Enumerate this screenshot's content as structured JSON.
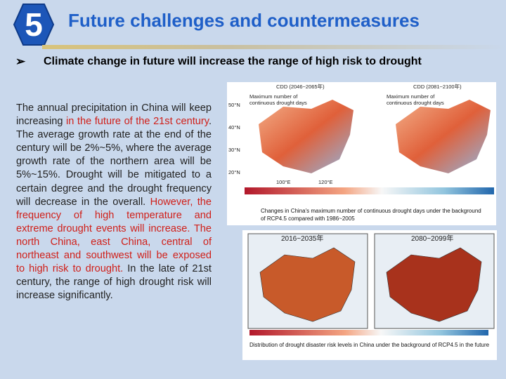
{
  "header": {
    "number": "5",
    "title": "Future challenges and countermeasures"
  },
  "bullet": "Climate change in future will increase the range of high risk to drought",
  "body": {
    "segments": [
      {
        "text": "The annual precipitation in China will keep increasing ",
        "color": "#222222"
      },
      {
        "text": "in the future of the 21st century",
        "color": "#d0201a"
      },
      {
        "text": ". The average growth rate at the end of the century will be 2%~5%, where the average growth rate of the northern area will be 5%~15%. Drought will be mitigated to a certain degree and the drought frequency will decrease in the overall. ",
        "color": "#222222"
      },
      {
        "text": "However, the frequency of high temperature and extreme drought events will increase. The north China, east China, central of northeast and southwest will be exposed to high risk to drought.",
        "color": "#d0201a"
      },
      {
        "text": " In the late of 21st century, the range of high drought risk will increase significantly.",
        "color": "#222222"
      }
    ]
  },
  "figure1": {
    "panels": [
      {
        "period": "CDD (2046~2065年)",
        "label": "Maximum number of continuous drought days"
      },
      {
        "period": "CDD (2081~2100年)",
        "label": "Maximum number of continuous drought days"
      }
    ],
    "lat_labels": [
      "50°N",
      "40°N",
      "30°N",
      "20°N"
    ],
    "lon_labels": [
      "100°E",
      "120°E"
    ],
    "caption": "Changes in China's maximum number of continuous drought days under the background of RCP4.5 compared with 1986~2005"
  },
  "figure2": {
    "panels": [
      {
        "period": "2016~2035年"
      },
      {
        "period": "2080~2099年"
      }
    ],
    "caption": "Distribution of drought disaster risk levels in China under the background of RCP4.5 in the future"
  }
}
